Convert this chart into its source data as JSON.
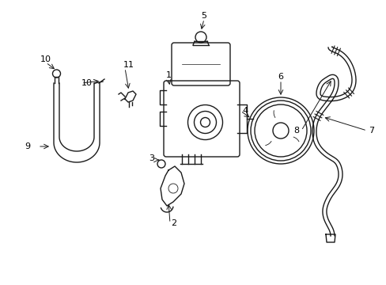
{
  "bg_color": "#ffffff",
  "line_color": "#1a1a1a",
  "line_width": 1.0,
  "thin_line": 0.6,
  "fig_width": 4.89,
  "fig_height": 3.6,
  "dpi": 100
}
